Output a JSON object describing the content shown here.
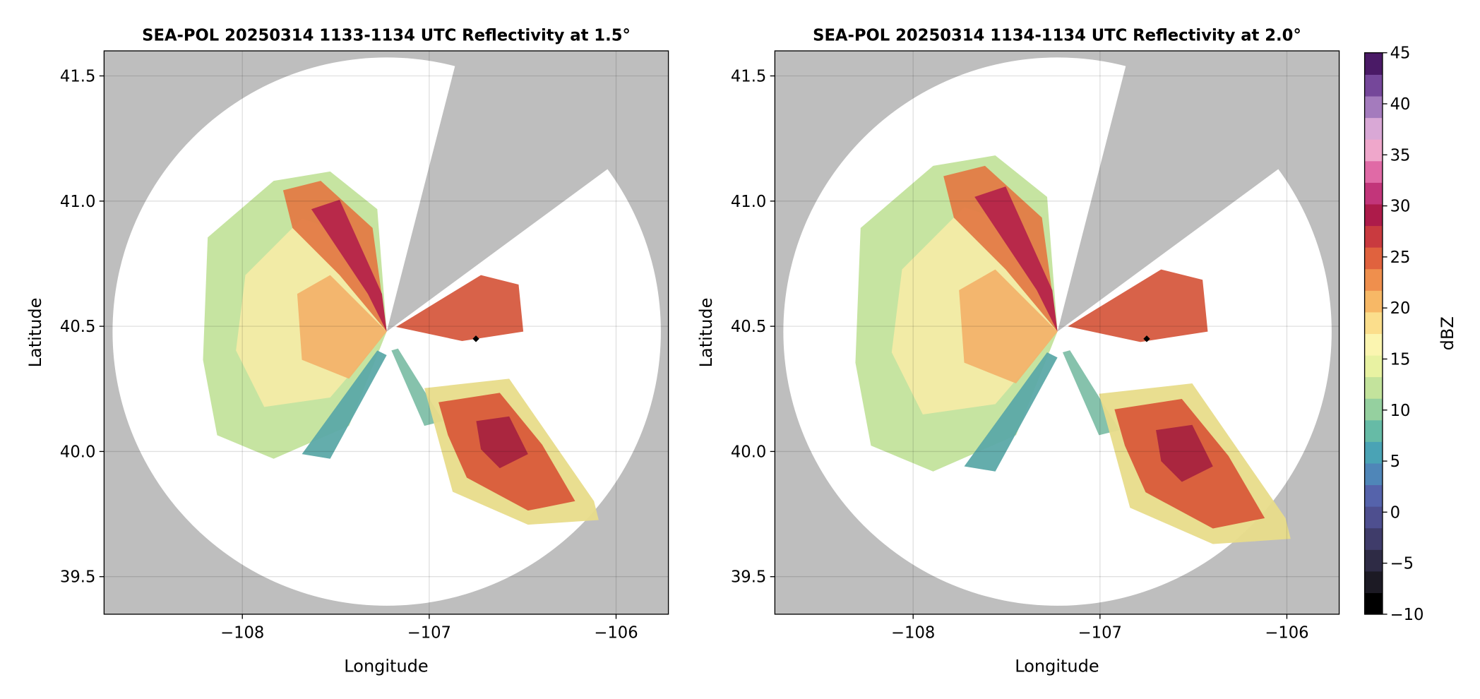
{
  "chart_data": [
    {
      "type": "radar",
      "title": "SEA-POL 20250314 1133-1134 UTC Reflectivity at 1.5°",
      "xlabel": "Longitude",
      "ylabel": "Latitude",
      "xlim": [
        -108.74,
        -105.72
      ],
      "ylim": [
        39.35,
        41.6
      ],
      "xticks": [
        {
          "value": -108,
          "label": "−108"
        },
        {
          "value": -107,
          "label": "−107"
        },
        {
          "value": -106,
          "label": "−106"
        }
      ],
      "yticks": [
        39.5,
        {
          "value": 40,
          "label": "40.0"
        },
        40.5,
        {
          "value": 41,
          "label": "41.0"
        },
        41.5
      ],
      "grid": true,
      "marker": {
        "x": -106.75,
        "y": 40.45
      }
    },
    {
      "type": "radar",
      "title": "SEA-POL 20250314 1134-1134 UTC Reflectivity at 2.0°",
      "xlabel": "Longitude",
      "ylabel": "Latitude",
      "xlim": [
        -108.74,
        -105.72
      ],
      "ylim": [
        39.35,
        41.6
      ],
      "xticks": [
        {
          "value": -108,
          "label": "−108"
        },
        {
          "value": -107,
          "label": "−107"
        },
        {
          "value": -106,
          "label": "−106"
        }
      ],
      "yticks": [
        39.5,
        {
          "value": 40,
          "label": "40.0"
        },
        40.5,
        {
          "value": 41,
          "label": "41.0"
        },
        41.5
      ],
      "grid": true,
      "marker": {
        "x": -106.75,
        "y": 40.45
      }
    }
  ],
  "colorbar": {
    "label": "dBZ",
    "lim": [
      -10,
      45
    ],
    "ticks": [
      {
        "value": -10,
        "label": "−10"
      },
      {
        "value": -5,
        "label": "−5"
      },
      0,
      5,
      10,
      15,
      20,
      25,
      30,
      35,
      40,
      45
    ],
    "colors": [
      "#000000",
      "#1c1a24",
      "#2e2b45",
      "#3f3c6a",
      "#4e4f8f",
      "#5563ab",
      "#4f86b8",
      "#4aa3b5",
      "#66bba6",
      "#95d09f",
      "#c3e39c",
      "#e8f2a2",
      "#fbf5b0",
      "#fbde8c",
      "#f7b866",
      "#ef8f4d",
      "#e0623e",
      "#c93a3f",
      "#ad1b4a",
      "#c2357a",
      "#e06aa6",
      "#efa7cb",
      "#d9a8d6",
      "#a47bbd",
      "#75479a",
      "#4a1a66"
    ]
  }
}
